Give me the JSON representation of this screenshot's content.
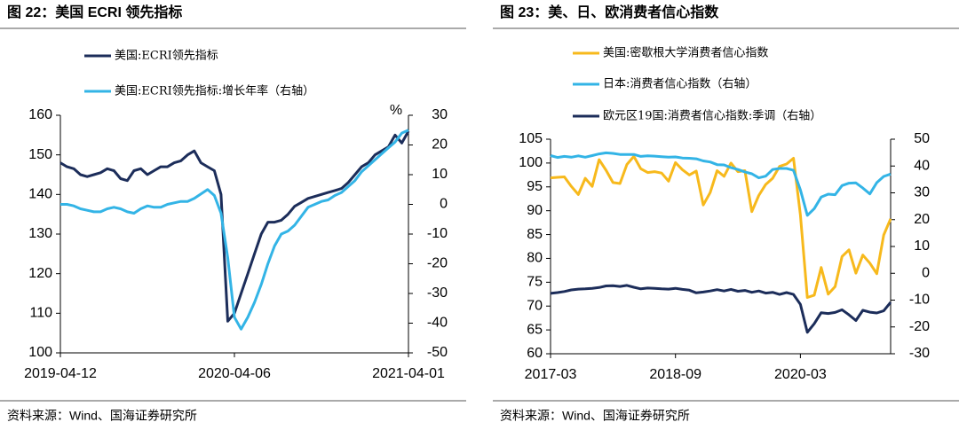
{
  "chart_data": [
    {
      "type": "line",
      "title": "图 22：美国 ECRI 领先指标",
      "source": "资料来源：Wind、国海证券研究所",
      "y2_label": "%",
      "categories": [
        "2019-04-12",
        null,
        null,
        null,
        null,
        null,
        null,
        null,
        null,
        null,
        null,
        null,
        null,
        null,
        null,
        null,
        null,
        null,
        null,
        null,
        null,
        null,
        null,
        null,
        null,
        null,
        "2020-04-06",
        null,
        null,
        null,
        null,
        null,
        null,
        null,
        null,
        null,
        null,
        null,
        null,
        null,
        null,
        null,
        null,
        null,
        null,
        null,
        null,
        null,
        null,
        null,
        null,
        null,
        "2021-04-01"
      ],
      "ylim": [
        100,
        160
      ],
      "yticks": [
        100,
        110,
        120,
        130,
        140,
        150,
        160
      ],
      "y2lim": [
        -50,
        30
      ],
      "y2ticks": [
        -50,
        -40,
        -30,
        -20,
        -10,
        0,
        10,
        20,
        30
      ],
      "series": [
        {
          "name": "美国:ECRI领先指标",
          "color": "#1c2d5a",
          "values": [
            148,
            147,
            146.5,
            145,
            144.5,
            145,
            145.5,
            146.5,
            146,
            144,
            143.5,
            146,
            146.5,
            145,
            146,
            147,
            147,
            148,
            148.5,
            150,
            151,
            148,
            147,
            146,
            140,
            108,
            110,
            115,
            120,
            125,
            130,
            133,
            133,
            133.5,
            135,
            137,
            138,
            139,
            139.5,
            140,
            140.5,
            141,
            141.5,
            143,
            145,
            147,
            148,
            150,
            151,
            152,
            155,
            153,
            156
          ]
        },
        {
          "name": "美国:ECRI领先指标:增长年率（右轴）",
          "color": "#33b4e6",
          "axis": "y2",
          "values": [
            0,
            0,
            -0.5,
            -1.5,
            -2,
            -2.5,
            -2.5,
            -1.5,
            -1,
            -1.5,
            -2.5,
            -3,
            -1.5,
            -0.5,
            -1,
            -1,
            0,
            0.5,
            1,
            1,
            2,
            3.5,
            5,
            3,
            -3,
            -18,
            -38,
            -42,
            -38,
            -33,
            -27,
            -20,
            -14,
            -10,
            -9,
            -7,
            -4,
            -1,
            0,
            1,
            1.5,
            3,
            4,
            6,
            8,
            11,
            13,
            15,
            17,
            19,
            21,
            24,
            25
          ]
        }
      ]
    },
    {
      "type": "line",
      "title": "图 23：美、日、欧消费者信心指数",
      "source": "资料来源：Wind、国海证券研究所",
      "categories": [
        "2017-03",
        null,
        null,
        null,
        null,
        null,
        null,
        null,
        null,
        null,
        null,
        null,
        null,
        null,
        null,
        null,
        null,
        null,
        "2018-09",
        null,
        null,
        null,
        null,
        null,
        null,
        null,
        null,
        null,
        null,
        null,
        null,
        null,
        null,
        null,
        null,
        null,
        "2020-03",
        null,
        null,
        null,
        null,
        null,
        null,
        null,
        null,
        null,
        null,
        null,
        null,
        null
      ],
      "ylim": [
        60,
        105
      ],
      "yticks": [
        60,
        65,
        70,
        75,
        80,
        85,
        90,
        95,
        100,
        105
      ],
      "y2lim": [
        -30,
        50
      ],
      "y2ticks": [
        -30,
        -20,
        -10,
        0,
        10,
        20,
        30,
        40,
        50
      ],
      "series": [
        {
          "name": "美国:密歇根大学消费者信心指数",
          "color": "#f7b91c",
          "values": [
            96.9,
            97.0,
            97.1,
            95.1,
            93.4,
            96.8,
            95.1,
            100.7,
            98.5,
            95.9,
            95.7,
            99.7,
            101.4,
            98.8,
            98.0,
            98.2,
            97.9,
            96.2,
            100.1,
            98.6,
            97.5,
            98.3,
            91.2,
            93.8,
            98.4,
            97.2,
            100.0,
            98.2,
            98.4,
            89.8,
            93.2,
            95.5,
            96.8,
            99.3,
            99.8,
            101.0,
            89.1,
            71.8,
            72.3,
            78.1,
            72.5,
            74.1,
            80.4,
            81.8,
            76.9,
            80.7,
            79.0,
            76.8,
            84.9,
            88.3
          ]
        },
        {
          "name": "日本:消费者信心指数（右轴）",
          "color": "#33b4e6",
          "axis": "y2",
          "values": [
            43.9,
            43.2,
            43.6,
            43.3,
            43.8,
            43.3,
            43.9,
            44.5,
            44.9,
            44.7,
            44.3,
            44.3,
            44.3,
            43.6,
            43.8,
            43.7,
            43.5,
            43.3,
            43.4,
            43.0,
            42.9,
            42.7,
            41.9,
            41.5,
            40.5,
            40.4,
            39.4,
            38.7,
            37.8,
            37.1,
            35.6,
            36.2,
            38.7,
            39.1,
            39.1,
            38.4,
            31.1,
            21.6,
            24.1,
            28.4,
            29.5,
            29.3,
            32.7,
            33.6,
            33.7,
            31.8,
            29.6,
            33.8,
            36.1,
            37.0
          ]
        },
        {
          "name": "欧元区19国:消费者信心指数:季调（右轴）",
          "color": "#1c2d5a",
          "axis": "y2",
          "values": [
            -7.5,
            -7.2,
            -6.8,
            -6.2,
            -5.9,
            -5.8,
            -5.6,
            -5.3,
            -4.7,
            -4.6,
            -4.9,
            -4.5,
            -5.2,
            -5.8,
            -5.5,
            -5.6,
            -5.8,
            -5.9,
            -5.6,
            -6.0,
            -6.3,
            -7.3,
            -7.0,
            -6.6,
            -6.1,
            -6.6,
            -6.0,
            -6.7,
            -6.4,
            -7.1,
            -6.6,
            -7.4,
            -7.1,
            -7.9,
            -7.2,
            -7.9,
            -11.6,
            -22.0,
            -18.8,
            -14.7,
            -15.0,
            -14.6,
            -13.6,
            -15.5,
            -17.6,
            -13.8,
            -14.5,
            -14.8,
            -14.0,
            -10.8
          ]
        }
      ]
    }
  ]
}
